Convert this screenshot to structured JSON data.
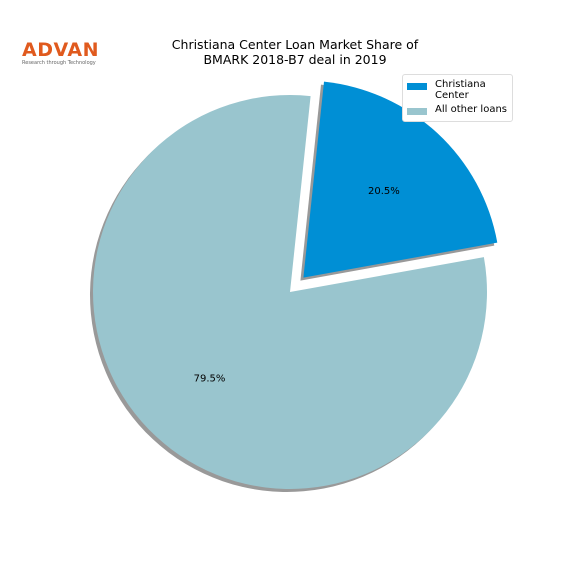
{
  "logo": {
    "name": "ADVAN",
    "tagline": "Research through Technology"
  },
  "chart_data": {
    "type": "pie",
    "title": "Christiana Center Loan Market Share of\nBMARK 2018-B7 deal in 2019",
    "categories": [
      "Christiana\nCenter",
      "All other loans"
    ],
    "values": [
      20.5,
      79.5
    ],
    "value_labels": [
      "20.5%",
      "79.5%"
    ],
    "colors": [
      "#008fd5",
      "#99c5ce"
    ],
    "legend": "upper right",
    "shadow": true
  }
}
